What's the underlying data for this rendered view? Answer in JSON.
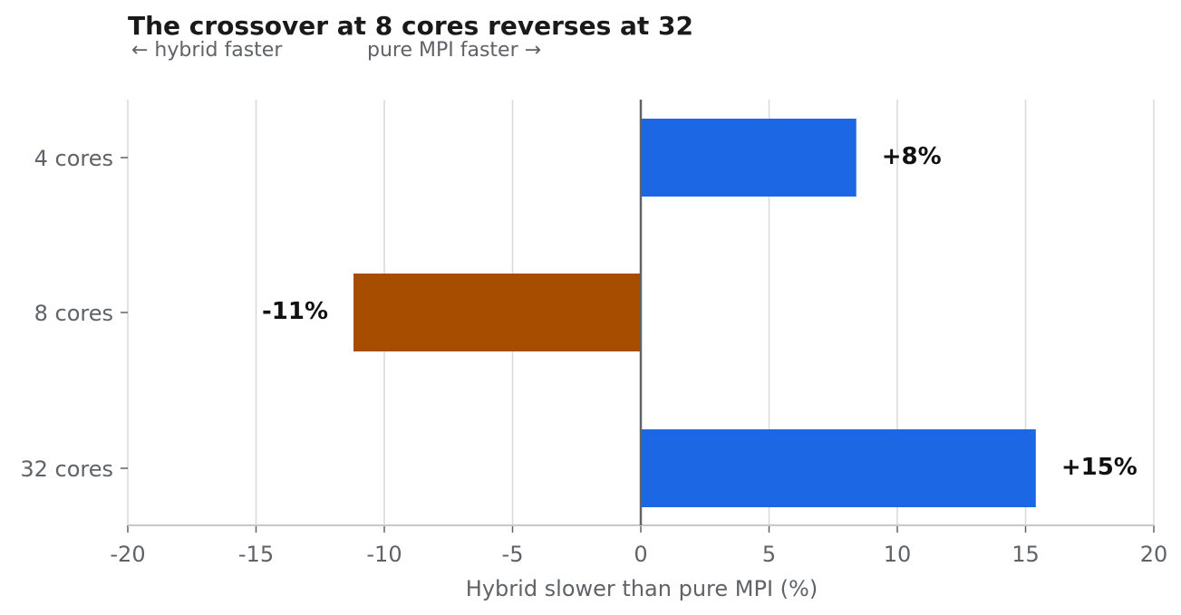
{
  "chart_data": {
    "type": "bar",
    "orientation": "horizontal",
    "title": "The crossover at 8 cores reverses at 32",
    "subtitle_left": "← hybrid faster",
    "subtitle_right": "pure MPI faster →",
    "xlabel": "Hybrid slower than pure MPI (%)",
    "ylabel": "",
    "xlim": [
      -20,
      20
    ],
    "xticks": [
      -20,
      -15,
      -10,
      -5,
      0,
      5,
      10,
      15,
      20
    ],
    "grid": true,
    "legend": "none",
    "categories": [
      "4 cores",
      "8 cores",
      "32 cores"
    ],
    "values": [
      8.4,
      -11.2,
      15.4
    ],
    "data_labels": [
      "+8%",
      "-11%",
      "+15%"
    ],
    "colors": {
      "positive": "#1c68e4",
      "negative": "#a64d00"
    }
  }
}
